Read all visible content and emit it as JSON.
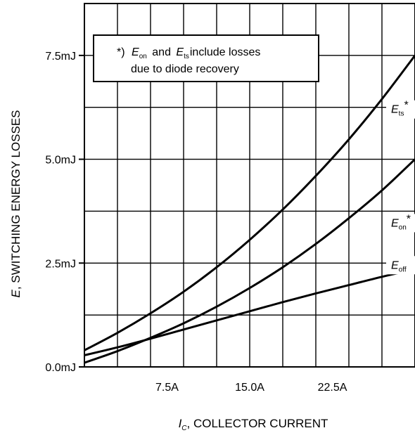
{
  "chart_data": {
    "type": "line",
    "xlabel_prefix": "I",
    "xlabel_sub": "C",
    "xlabel_rest": ", COLLECTOR CURRENT",
    "ylabel_prefix": "E",
    "ylabel_rest": ", SWITCHING ENERGY LOSSES",
    "xlim": [
      0,
      30
    ],
    "ylim": [
      0,
      8.75
    ],
    "x_ticks": [
      {
        "value": 7.5,
        "label": "7.5A"
      },
      {
        "value": 15.0,
        "label": "15.0A"
      },
      {
        "value": 22.5,
        "label": "22.5A"
      }
    ],
    "y_ticks": [
      {
        "value": 0,
        "label": "0.0mJ"
      },
      {
        "value": 2.5,
        "label": "2.5mJ"
      },
      {
        "value": 5.0,
        "label": "5.0mJ"
      },
      {
        "value": 7.5,
        "label": "7.5mJ"
      }
    ],
    "grid_x": [
      3,
      6,
      9,
      12,
      15,
      18,
      21,
      24,
      27,
      30
    ],
    "grid_y": [
      1.25,
      2.5,
      3.75,
      5.0,
      6.25,
      7.5,
      8.75
    ],
    "grid": true,
    "series": [
      {
        "name": "ts",
        "label_main": "E",
        "label_sub": "ts",
        "label_suffix": "*",
        "label_at": 6.25,
        "x": [
          0,
          3,
          6,
          9,
          12,
          15,
          18,
          21,
          24,
          27,
          30
        ],
        "y": [
          0.4,
          0.82,
          1.29,
          1.81,
          2.4,
          3.06,
          3.79,
          4.6,
          5.48,
          6.45,
          7.5
        ]
      },
      {
        "name": "on",
        "label_main": "E",
        "label_sub": "on",
        "label_suffix": "*",
        "label_at": 3.75,
        "x": [
          0,
          3,
          6,
          9,
          12,
          15,
          18,
          21,
          24,
          27,
          30
        ],
        "y": [
          0.1,
          0.38,
          0.7,
          1.05,
          1.45,
          1.9,
          2.4,
          2.96,
          3.58,
          4.25,
          5.0
        ]
      },
      {
        "name": "off",
        "label_main": "E",
        "label_sub": "off",
        "label_suffix": "",
        "label_at": 2.5,
        "x": [
          0,
          3,
          6,
          9,
          12,
          15,
          18,
          21,
          24,
          27,
          30
        ],
        "y": [
          0.28,
          0.47,
          0.68,
          0.9,
          1.12,
          1.34,
          1.56,
          1.77,
          1.97,
          2.17,
          2.35
        ]
      }
    ],
    "annotation": {
      "star": "*)",
      "e1_main": "E",
      "e1_sub": "on",
      "and_text": "and",
      "e2_main": "E",
      "e2_sub": "ts",
      "line1_rest": "include losses",
      "line2": "due to diode recovery"
    }
  }
}
